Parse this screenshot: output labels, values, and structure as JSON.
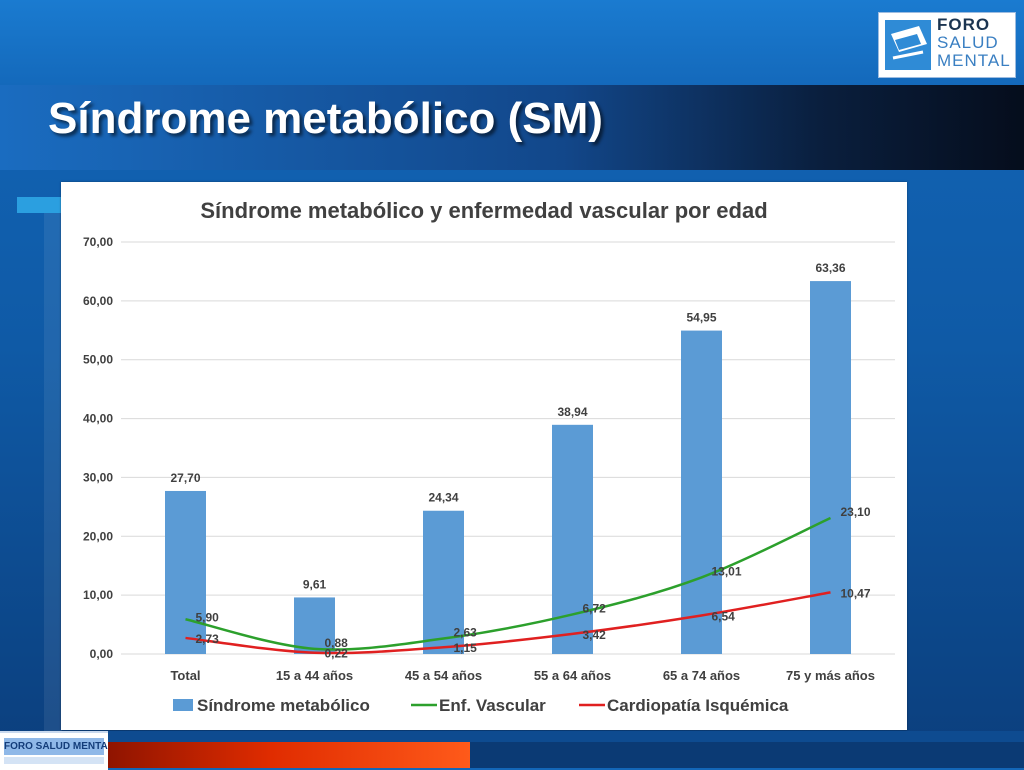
{
  "slide": {
    "title": "Síndrome metabólico (SM)"
  },
  "logo": {
    "line1": "FORO",
    "line2": "SALUD",
    "line3": "MENTAL",
    "footer_text": "FORO SALUD MENTAL"
  },
  "colors": {
    "bar": "#5b9bd5",
    "vascular": "#2ca02c",
    "cardiopatia": "#e02020",
    "grid": "#d9d9d9"
  },
  "chart_data": {
    "type": "bar",
    "title": "Síndrome metabólico y enfermedad vascular por edad",
    "categories": [
      "Total",
      "15 a 44 años",
      "45 a 54 años",
      "55 a 64 años",
      "65 a 74 años",
      "75 y más años"
    ],
    "ylim": [
      0,
      70
    ],
    "yticks": [
      "0,00",
      "10,00",
      "20,00",
      "30,00",
      "40,00",
      "50,00",
      "60,00",
      "70,00"
    ],
    "grid": true,
    "legend_position": "bottom",
    "series": [
      {
        "name": "Síndrome metabólico",
        "kind": "bar",
        "values": [
          27.7,
          9.61,
          24.34,
          38.94,
          54.95,
          63.36
        ],
        "labels": [
          "27,70",
          "9,61",
          "24,34",
          "38,94",
          "54,95",
          "63,36"
        ]
      },
      {
        "name": "Enf. Vascular",
        "kind": "line",
        "values": [
          5.9,
          0.88,
          2.63,
          6.72,
          13.01,
          23.1
        ],
        "labels": [
          "5,90",
          "0,88",
          "2,63",
          "6,72",
          "13,01",
          "23,10"
        ]
      },
      {
        "name": "Cardiopatía Isquémica",
        "kind": "line",
        "values": [
          2.73,
          0.22,
          1.15,
          3.42,
          6.54,
          10.47
        ],
        "labels": [
          "2,73",
          "0,22",
          "1,15",
          "3,42",
          "6,54",
          "10,47"
        ]
      }
    ]
  }
}
